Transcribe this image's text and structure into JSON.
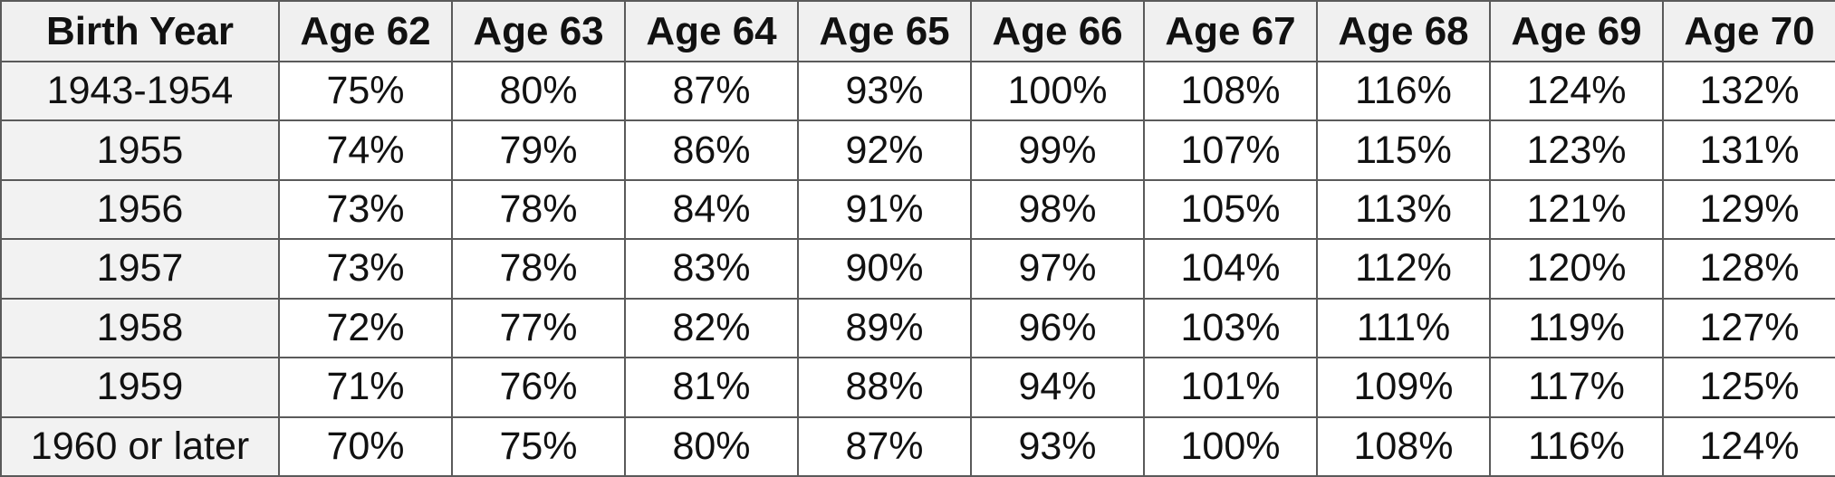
{
  "table": {
    "header": [
      "Birth Year",
      "Age 62",
      "Age 63",
      "Age 64",
      "Age 65",
      "Age 66",
      "Age 67",
      "Age 68",
      "Age 69",
      "Age 70"
    ],
    "rows": [
      [
        "1943-1954",
        "75%",
        "80%",
        "87%",
        "93%",
        "100%",
        "108%",
        "116%",
        "124%",
        "132%"
      ],
      [
        "1955",
        "74%",
        "79%",
        "86%",
        "92%",
        "99%",
        "107%",
        "115%",
        "123%",
        "131%"
      ],
      [
        "1956",
        "73%",
        "78%",
        "84%",
        "91%",
        "98%",
        "105%",
        "113%",
        "121%",
        "129%"
      ],
      [
        "1957",
        "73%",
        "78%",
        "83%",
        "90%",
        "97%",
        "104%",
        "112%",
        "120%",
        "128%"
      ],
      [
        "1958",
        "72%",
        "77%",
        "82%",
        "89%",
        "96%",
        "103%",
        "111%",
        "119%",
        "127%"
      ],
      [
        "1959",
        "71%",
        "76%",
        "81%",
        "88%",
        "94%",
        "101%",
        "109%",
        "117%",
        "125%"
      ],
      [
        "1960 or later",
        "70%",
        "75%",
        "80%",
        "87%",
        "93%",
        "100%",
        "108%",
        "116%",
        "124%"
      ]
    ]
  }
}
